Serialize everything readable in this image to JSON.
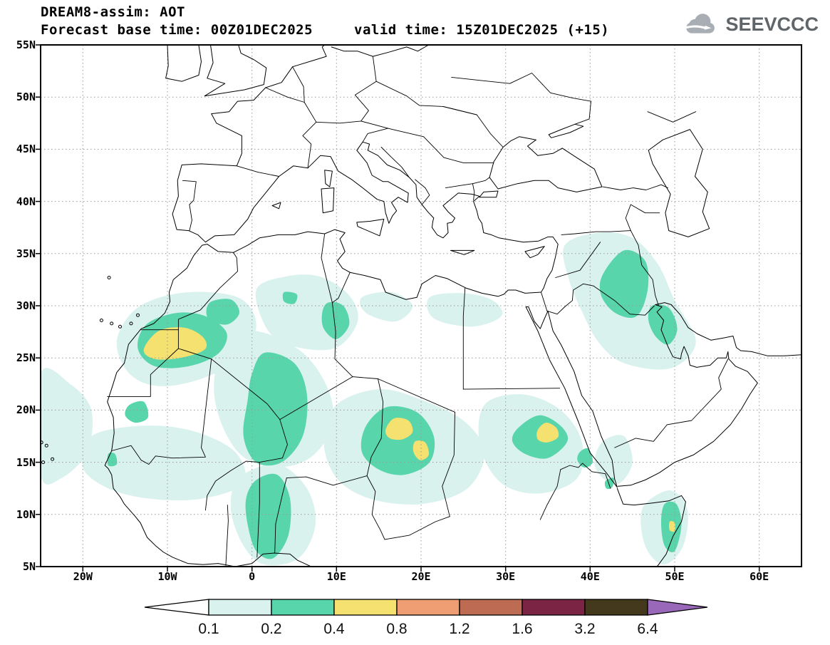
{
  "header": {
    "title": "DREAM8-assim: AOT",
    "forecast_line": "Forecast base time: 00Z01DEC2025",
    "valid_line": "valid time: 15Z01DEC2025 (+15)",
    "logo": "SEEVCCC"
  },
  "map": {
    "lat_ticks": [
      "55N",
      "50N",
      "45N",
      "40N",
      "35N",
      "30N",
      "25N",
      "20N",
      "15N",
      "10N",
      "5N"
    ],
    "lon_ticks": [
      "20W",
      "10W",
      "0",
      "10E",
      "20E",
      "30E",
      "40E",
      "50E",
      "60E"
    ]
  },
  "colorbar": {
    "boundary_labels": [
      "0.1",
      "0.2",
      "0.4",
      "0.8",
      "1.2",
      "1.6",
      "3.2",
      "6.4"
    ],
    "segment_colors": [
      "#d9f2ee",
      "#58d5ab",
      "#f4e170",
      "#ee9e72",
      "#bd6c53",
      "#7b2444",
      "#45391d"
    ],
    "left_arrow_color": "#ffffff",
    "right_arrow_color": "#9a68b8",
    "outline_color": "#000000"
  }
}
